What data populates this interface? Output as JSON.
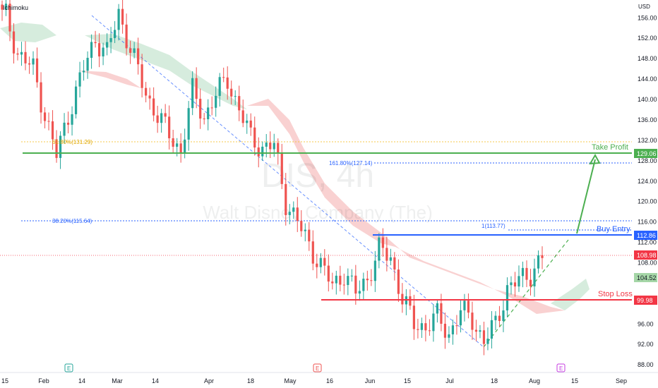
{
  "header": {
    "indicator": "Ichimoku",
    "currency": "USD"
  },
  "watermark": {
    "symbol": "DIS, 4h",
    "company": "Walt Disney Company (The)"
  },
  "colors": {
    "up": "#26a69a",
    "down": "#ef5350",
    "take_profit": "#4caf50",
    "buy_entry": "#2962ff",
    "stop_loss": "#f23645",
    "fib": "#2962ff",
    "fib_618": "#f7c948",
    "cloud_red": "#f8c9c9",
    "cloud_green": "#cfe9d8",
    "price_badge": "#f23645",
    "level_badge": "#7dbb82"
  },
  "chart_data": {
    "type": "candlestick",
    "y_axis": {
      "range": [
        86.5,
        159.5
      ],
      "ticks": [
        "156.00",
        "152.00",
        "148.00",
        "144.00",
        "140.00",
        "136.00",
        "132.00",
        "128.00",
        "124.00",
        "120.00",
        "116.00",
        "112.00",
        "108.00",
        "96.00",
        "92.00",
        "88.00"
      ]
    },
    "x_axis": {
      "labels": [
        "15",
        "Feb",
        "14",
        "Mar",
        "14",
        "Apr",
        "18",
        "May",
        "16",
        "Jun",
        "15",
        "Jul",
        "18",
        "Aug",
        "15",
        "Sep"
      ]
    },
    "levels": [
      {
        "name": "Take Profit",
        "value": 129.06,
        "badge": "129.06"
      },
      {
        "name": "Buy Entry",
        "value": 112.86,
        "badge": "112.86"
      },
      {
        "name": "Stop Loss",
        "value": 99.98,
        "badge": "99.98"
      }
    ],
    "fib_labels": [
      {
        "text": "61.80%(131.29)",
        "value": 131.29
      },
      {
        "text": "161.80%(127.14)",
        "value": 127.14
      },
      {
        "text": "38.20%(115.64)",
        "value": 115.64
      },
      {
        "text": "1(113.77)",
        "value": 113.77
      }
    ],
    "price_badges": [
      {
        "text": "108.98",
        "value": 108.98
      },
      {
        "text": "104.52",
        "value": 104.52
      }
    ],
    "events": [
      "E",
      "E",
      "E"
    ],
    "ohlc_anchors": [
      [
        156.5,
        1
      ],
      [
        149.0,
        4
      ],
      [
        146.0,
        8
      ],
      [
        137.0,
        11
      ],
      [
        129.0,
        14
      ],
      [
        137.0,
        17
      ],
      [
        146.0,
        21
      ],
      [
        152.0,
        24
      ],
      [
        149.0,
        27
      ],
      [
        157.0,
        30
      ],
      [
        150.0,
        33
      ],
      [
        141.0,
        37
      ],
      [
        137.0,
        40
      ],
      [
        133.0,
        43
      ],
      [
        130.0,
        46
      ],
      [
        141.5,
        49
      ],
      [
        136.5,
        52
      ],
      [
        141.0,
        55
      ],
      [
        144.0,
        58
      ],
      [
        138.0,
        61
      ],
      [
        132.5,
        64
      ],
      [
        130.5,
        67
      ],
      [
        131.0,
        70
      ],
      [
        120.0,
        73
      ],
      [
        116.0,
        76
      ],
      [
        111.5,
        79
      ],
      [
        107.5,
        82
      ],
      [
        103.5,
        85
      ],
      [
        106.0,
        88
      ],
      [
        102.0,
        91
      ],
      [
        105.0,
        94
      ],
      [
        110.5,
        97
      ],
      [
        109.0,
        100
      ],
      [
        101.0,
        103
      ],
      [
        96.0,
        106
      ],
      [
        95.5,
        109
      ],
      [
        97.5,
        112
      ],
      [
        94.0,
        115
      ],
      [
        98.5,
        118
      ],
      [
        97.0,
        121
      ],
      [
        92.5,
        124
      ],
      [
        96.0,
        127
      ],
      [
        103.0,
        130
      ],
      [
        104.5,
        133
      ],
      [
        106.0,
        136
      ],
      [
        109.0,
        139
      ]
    ]
  }
}
